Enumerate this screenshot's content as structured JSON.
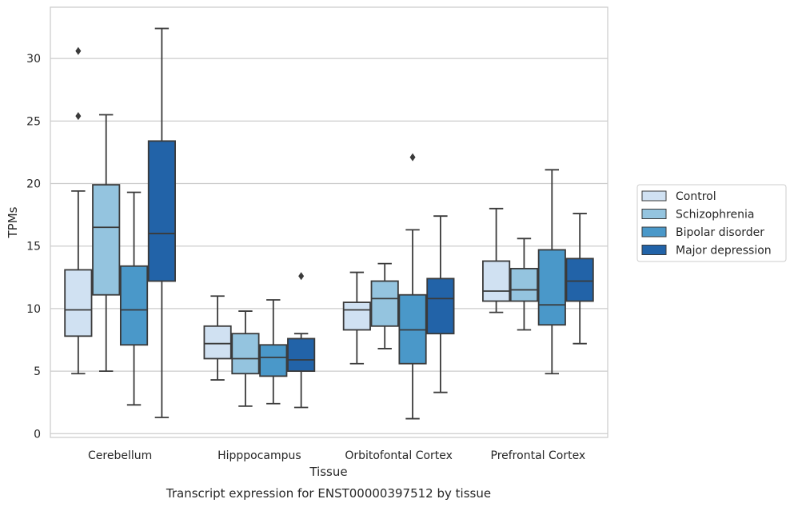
{
  "chart_data": {
    "type": "box",
    "caption": "Transcript expression for ENST00000397512 by tissue",
    "xlabel": "Tissue",
    "ylabel": "TPMs",
    "ylim": [
      -0.3,
      34.1
    ],
    "yticks": [
      0,
      5,
      10,
      15,
      20,
      25,
      30
    ],
    "grid": true,
    "legend_position": "right",
    "categories": [
      "Cerebellum",
      "Hipppocampus",
      "Orbitofontal Cortex",
      "Prefrontal Cortex"
    ],
    "series": [
      {
        "name": "Control",
        "color": "#d0e1f2",
        "boxes": [
          {
            "whisker_low": 4.8,
            "q1": 7.8,
            "median": 9.9,
            "q3": 13.1,
            "whisker_high": 19.4,
            "outliers": [
              30.6,
              25.4
            ]
          },
          {
            "whisker_low": 4.3,
            "q1": 6.0,
            "median": 7.2,
            "q3": 8.6,
            "whisker_high": 11.0,
            "outliers": []
          },
          {
            "whisker_low": 5.6,
            "q1": 8.3,
            "median": 9.9,
            "q3": 10.5,
            "whisker_high": 12.9,
            "outliers": []
          },
          {
            "whisker_low": 9.7,
            "q1": 10.6,
            "median": 11.4,
            "q3": 13.8,
            "whisker_high": 18.0,
            "outliers": []
          }
        ]
      },
      {
        "name": "Schizophrenia",
        "color": "#94c4df",
        "boxes": [
          {
            "whisker_low": 5.0,
            "q1": 11.1,
            "median": 16.5,
            "q3": 19.9,
            "whisker_high": 25.5,
            "outliers": []
          },
          {
            "whisker_low": 2.2,
            "q1": 4.8,
            "median": 6.0,
            "q3": 8.0,
            "whisker_high": 9.8,
            "outliers": []
          },
          {
            "whisker_low": 6.8,
            "q1": 8.6,
            "median": 10.8,
            "q3": 12.2,
            "whisker_high": 13.6,
            "outliers": []
          },
          {
            "whisker_low": 8.3,
            "q1": 10.6,
            "median": 11.5,
            "q3": 13.2,
            "whisker_high": 15.6,
            "outliers": []
          }
        ]
      },
      {
        "name": "Bipolar disorder",
        "color": "#4a98c9",
        "boxes": [
          {
            "whisker_low": 2.3,
            "q1": 7.1,
            "median": 9.9,
            "q3": 13.4,
            "whisker_high": 19.3,
            "outliers": []
          },
          {
            "whisker_low": 2.4,
            "q1": 4.6,
            "median": 6.1,
            "q3": 7.1,
            "whisker_high": 10.7,
            "outliers": []
          },
          {
            "whisker_low": 1.2,
            "q1": 5.6,
            "median": 8.3,
            "q3": 11.1,
            "whisker_high": 16.3,
            "outliers": [
              22.1
            ]
          },
          {
            "whisker_low": 4.8,
            "q1": 8.7,
            "median": 10.3,
            "q3": 14.7,
            "whisker_high": 21.1,
            "outliers": []
          }
        ]
      },
      {
        "name": "Major depression",
        "color": "#2263a8",
        "boxes": [
          {
            "whisker_low": 1.3,
            "q1": 12.2,
            "median": 16.0,
            "q3": 23.4,
            "whisker_high": 32.4,
            "outliers": []
          },
          {
            "whisker_low": 2.1,
            "q1": 5.0,
            "median": 5.9,
            "q3": 7.6,
            "whisker_high": 8.0,
            "outliers": [
              12.6
            ]
          },
          {
            "whisker_low": 3.3,
            "q1": 8.0,
            "median": 10.8,
            "q3": 12.4,
            "whisker_high": 17.4,
            "outliers": []
          },
          {
            "whisker_low": 7.2,
            "q1": 10.6,
            "median": 12.2,
            "q3": 14.0,
            "whisker_high": 17.6,
            "outliers": []
          }
        ]
      }
    ]
  }
}
